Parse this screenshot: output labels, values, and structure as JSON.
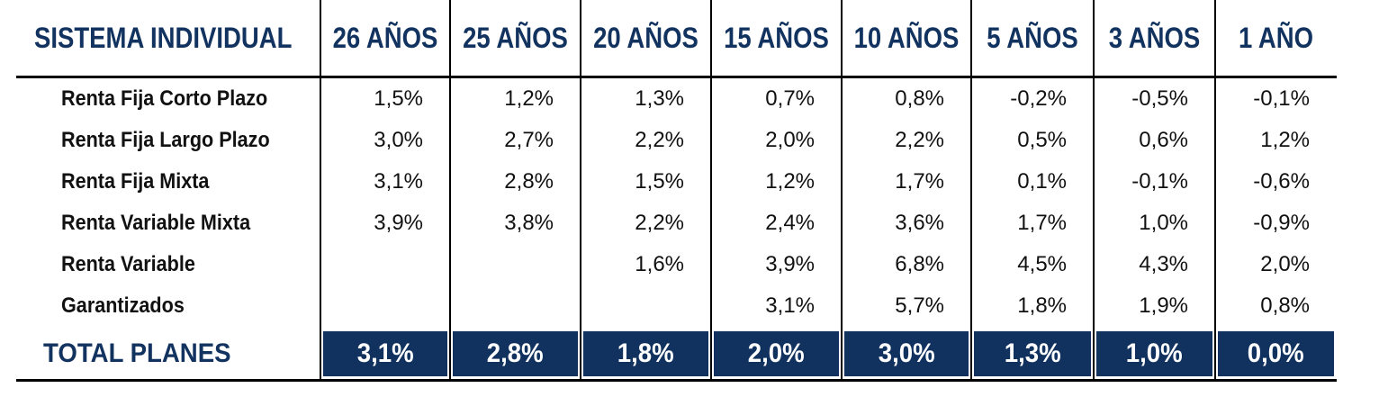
{
  "table": {
    "title": "SISTEMA INDIVIDUAL",
    "columns": [
      "26 AÑOS",
      "25 AÑOS",
      "20 AÑOS",
      "15 AÑOS",
      "10 AÑOS",
      "5 AÑOS",
      "3 AÑOS",
      "1 AÑO"
    ],
    "rows": [
      {
        "label": "Renta Fija Corto Plazo",
        "values": [
          "1,5%",
          "1,2%",
          "1,3%",
          "0,7%",
          "0,8%",
          "-0,2%",
          "-0,5%",
          "-0,1%"
        ]
      },
      {
        "label": "Renta Fija Largo Plazo",
        "values": [
          "3,0%",
          "2,7%",
          "2,2%",
          "2,0%",
          "2,2%",
          "0,5%",
          "0,6%",
          "1,2%"
        ]
      },
      {
        "label": "Renta Fija Mixta",
        "values": [
          "3,1%",
          "2,8%",
          "1,5%",
          "1,2%",
          "1,7%",
          "0,1%",
          "-0,1%",
          "-0,6%"
        ]
      },
      {
        "label": "Renta Variable Mixta",
        "values": [
          "3,9%",
          "3,8%",
          "2,2%",
          "2,4%",
          "3,6%",
          "1,7%",
          "1,0%",
          "-0,9%"
        ]
      },
      {
        "label": "Renta Variable",
        "values": [
          "",
          "",
          "1,6%",
          "3,9%",
          "6,8%",
          "4,5%",
          "4,3%",
          "2,0%"
        ]
      },
      {
        "label": "Garantizados",
        "values": [
          "",
          "",
          "",
          "3,1%",
          "5,7%",
          "1,8%",
          "1,9%",
          "0,8%"
        ]
      }
    ],
    "total": {
      "label": "TOTAL PLANES",
      "values": [
        "3,1%",
        "2,8%",
        "1,8%",
        "2,0%",
        "3,0%",
        "1,3%",
        "1,0%",
        "0,0%"
      ]
    }
  },
  "colors": {
    "header_text": "#12335f",
    "total_fill": "#11325f",
    "total_text": "#ffffff",
    "rules": "#000000"
  }
}
